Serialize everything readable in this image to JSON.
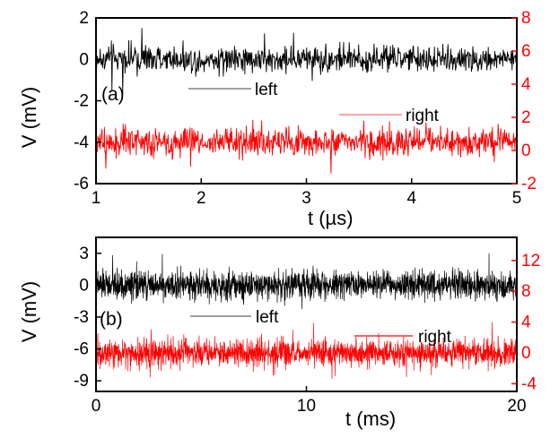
{
  "colors": {
    "left": "#000000",
    "right": "#ff0000",
    "axis": "#000000"
  },
  "chart_data": [
    {
      "type": "line",
      "panel_label": "(a)",
      "xlabel": "t (µs)",
      "ylabel": "V (mV)",
      "xlim": [
        1,
        5
      ],
      "x_ticks": [
        1,
        2,
        3,
        4,
        5
      ],
      "ylim": [
        -6,
        2
      ],
      "y_ticks": [
        -6,
        -4,
        -2,
        0,
        2
      ],
      "y2lim": [
        -2,
        8
      ],
      "y2_ticks": [
        -2,
        0,
        2,
        4,
        6,
        8
      ],
      "grid": false,
      "series": [
        {
          "name": "left",
          "axis": "left",
          "baseline": 0,
          "amplitude": 0.6,
          "peak": 1.8,
          "samples": 900
        },
        {
          "name": "right",
          "axis": "right",
          "baseline": 0.5,
          "amplitude": 0.8,
          "peak": 1.9,
          "samples": 900
        }
      ]
    },
    {
      "type": "line",
      "panel_label": "(b)",
      "xlabel": "t (ms)",
      "ylabel": "V (mV)",
      "xlim": [
        0,
        20
      ],
      "x_ticks": [
        0,
        10,
        20
      ],
      "ylim": [
        -10,
        4.5
      ],
      "y_ticks": [
        -9,
        -6,
        -3,
        0,
        3
      ],
      "y2lim": [
        -5,
        15
      ],
      "y2_ticks": [
        -4,
        0,
        4,
        8,
        12
      ],
      "grid": false,
      "series": [
        {
          "name": "left",
          "axis": "left",
          "baseline": 0,
          "amplitude": 1.2,
          "peak": 3.0,
          "samples": 2000
        },
        {
          "name": "right",
          "axis": "right",
          "baseline": 0,
          "amplitude": 1.6,
          "peak": 4.0,
          "samples": 2000
        }
      ]
    }
  ]
}
